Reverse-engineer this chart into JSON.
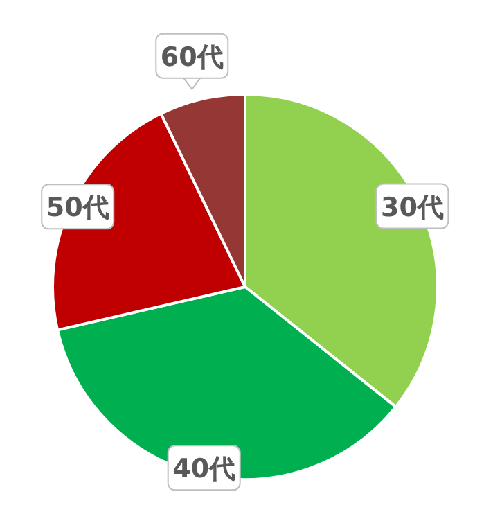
{
  "chart_data": {
    "type": "pie",
    "categories": [
      "30代",
      "40代",
      "50代",
      "60代"
    ],
    "values": [
      35.7,
      35.7,
      21.4,
      7.2
    ],
    "colors": [
      "#92d050",
      "#00b050",
      "#c00000",
      "#953735"
    ]
  }
}
